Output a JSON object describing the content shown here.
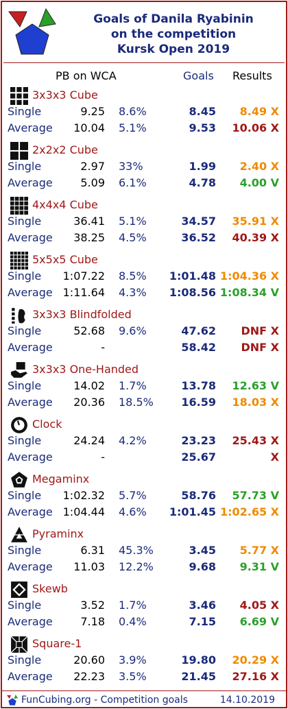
{
  "title": {
    "line1": "Goals of Danila Ryabinin",
    "line2": "on the competition",
    "line3": "Kursk Open 2019"
  },
  "headers": {
    "pb": "PB on WCA",
    "goals": "Goals",
    "results": "Results"
  },
  "colors": {
    "fail": "#a01818",
    "near": "#f08a00",
    "success": "#2aa02a",
    "navy": "#1a2a7a"
  },
  "events": [
    {
      "name": "3x3x3 Cube",
      "icon": "cube-3x3-icon",
      "single": {
        "label": "Single",
        "pb": "9.25",
        "pct": "8.6%",
        "goal": "8.45",
        "result": "8.49 X",
        "status": "near"
      },
      "average": {
        "label": "Average",
        "pb": "10.04",
        "pct": "5.1%",
        "goal": "9.53",
        "result": "10.06 X",
        "status": "fail"
      }
    },
    {
      "name": "2x2x2 Cube",
      "icon": "cube-2x2-icon",
      "single": {
        "label": "Single",
        "pb": "2.97",
        "pct": "33%",
        "goal": "1.99",
        "result": "2.40 X",
        "status": "near"
      },
      "average": {
        "label": "Average",
        "pb": "5.09",
        "pct": "6.1%",
        "goal": "4.78",
        "result": "4.00 V",
        "status": "success"
      }
    },
    {
      "name": "4x4x4 Cube",
      "icon": "cube-4x4-icon",
      "single": {
        "label": "Single",
        "pb": "36.41",
        "pct": "5.1%",
        "goal": "34.57",
        "result": "35.91 X",
        "status": "near"
      },
      "average": {
        "label": "Average",
        "pb": "38.25",
        "pct": "4.5%",
        "goal": "36.52",
        "result": "40.39 X",
        "status": "fail"
      }
    },
    {
      "name": "5x5x5 Cube",
      "icon": "cube-5x5-icon",
      "single": {
        "label": "Single",
        "pb": "1:07.22",
        "pct": "8.5%",
        "goal": "1:01.48",
        "result": "1:04.36 X",
        "status": "near"
      },
      "average": {
        "label": "Average",
        "pb": "1:11.64",
        "pct": "4.3%",
        "goal": "1:08.56",
        "result": "1:08.34 V",
        "status": "success"
      }
    },
    {
      "name": "3x3x3 Blindfolded",
      "icon": "blindfold-icon",
      "single": {
        "label": "Single",
        "pb": "52.68",
        "pct": "9.6%",
        "goal": "47.62",
        "result": "DNF X",
        "status": "fail"
      },
      "average": {
        "label": "Average",
        "pb": "-",
        "pct": "",
        "goal": "58.42",
        "result": "DNF X",
        "status": "fail"
      }
    },
    {
      "name": "3x3x3 One-Handed",
      "icon": "one-hand-icon",
      "single": {
        "label": "Single",
        "pb": "14.02",
        "pct": "1.7%",
        "goal": "13.78",
        "result": "12.63 V",
        "status": "success"
      },
      "average": {
        "label": "Average",
        "pb": "20.36",
        "pct": "18.5%",
        "goal": "16.59",
        "result": "18.03 X",
        "status": "near"
      }
    },
    {
      "name": "Clock",
      "icon": "clock-icon",
      "single": {
        "label": "Single",
        "pb": "24.24",
        "pct": "4.2%",
        "goal": "23.23",
        "result": "25.43 X",
        "status": "fail"
      },
      "average": {
        "label": "Average",
        "pb": "-",
        "pct": "",
        "goal": "25.67",
        "result": "X",
        "status": "fail"
      }
    },
    {
      "name": "Megaminx",
      "icon": "megaminx-icon",
      "single": {
        "label": "Single",
        "pb": "1:02.32",
        "pct": "5.7%",
        "goal": "58.76",
        "result": "57.73 V",
        "status": "success"
      },
      "average": {
        "label": "Average",
        "pb": "1:04.44",
        "pct": "4.6%",
        "goal": "1:01.45",
        "result": "1:02.65 X",
        "status": "near"
      }
    },
    {
      "name": "Pyraminx",
      "icon": "pyraminx-icon",
      "single": {
        "label": "Single",
        "pb": "6.31",
        "pct": "45.3%",
        "goal": "3.45",
        "result": "5.77 X",
        "status": "near"
      },
      "average": {
        "label": "Average",
        "pb": "11.03",
        "pct": "12.2%",
        "goal": "9.68",
        "result": "9.31 V",
        "status": "success"
      }
    },
    {
      "name": "Skewb",
      "icon": "skewb-icon",
      "single": {
        "label": "Single",
        "pb": "3.52",
        "pct": "1.7%",
        "goal": "3.46",
        "result": "4.05 X",
        "status": "fail"
      },
      "average": {
        "label": "Average",
        "pb": "7.18",
        "pct": "0.4%",
        "goal": "7.15",
        "result": "6.69 V",
        "status": "success"
      }
    },
    {
      "name": "Square-1",
      "icon": "square1-icon",
      "single": {
        "label": "Single",
        "pb": "20.60",
        "pct": "3.9%",
        "goal": "19.80",
        "result": "20.29 X",
        "status": "near"
      },
      "average": {
        "label": "Average",
        "pb": "22.23",
        "pct": "3.5%",
        "goal": "21.45",
        "result": "27.16 X",
        "status": "fail"
      }
    }
  ],
  "footer": {
    "text": "FunCubing.org - Competition goals",
    "date": "14.10.2019"
  }
}
